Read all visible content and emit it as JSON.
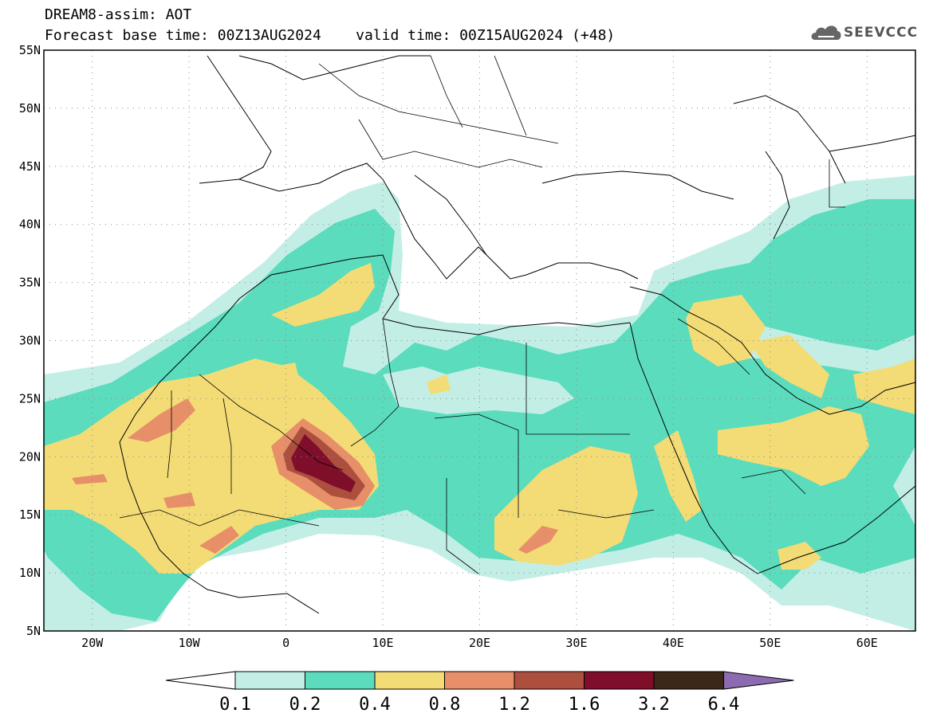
{
  "header": {
    "line1": "DREAM8-assim: AOT",
    "line2": "Forecast base time: 00Z13AUG2024    valid time: 00Z15AUG2024 (+48)"
  },
  "logo": {
    "text": "SEEVCCC",
    "icon": "cloud-icon"
  },
  "map": {
    "lon_range": [
      -25,
      65
    ],
    "lat_range": [
      5,
      55
    ],
    "lat_ticks": [
      "5N",
      "10N",
      "15N",
      "20N",
      "25N",
      "30N",
      "35N",
      "40N",
      "45N",
      "50N",
      "55N"
    ],
    "lon_ticks": [
      "20W",
      "10W",
      "0",
      "10E",
      "20E",
      "30E",
      "40E",
      "50E",
      "60E"
    ],
    "grid": true
  },
  "colorbar": {
    "labels": [
      "0.1",
      "0.2",
      "0.4",
      "0.8",
      "1.2",
      "1.6",
      "3.2",
      "6.4"
    ],
    "colors": [
      "#ffffff",
      "#c3eee6",
      "#5bdcbd",
      "#f3dc75",
      "#e78f69",
      "#ad4f3f",
      "#7e0e2a",
      "#3c2816",
      "#8c6bb1"
    ]
  }
}
